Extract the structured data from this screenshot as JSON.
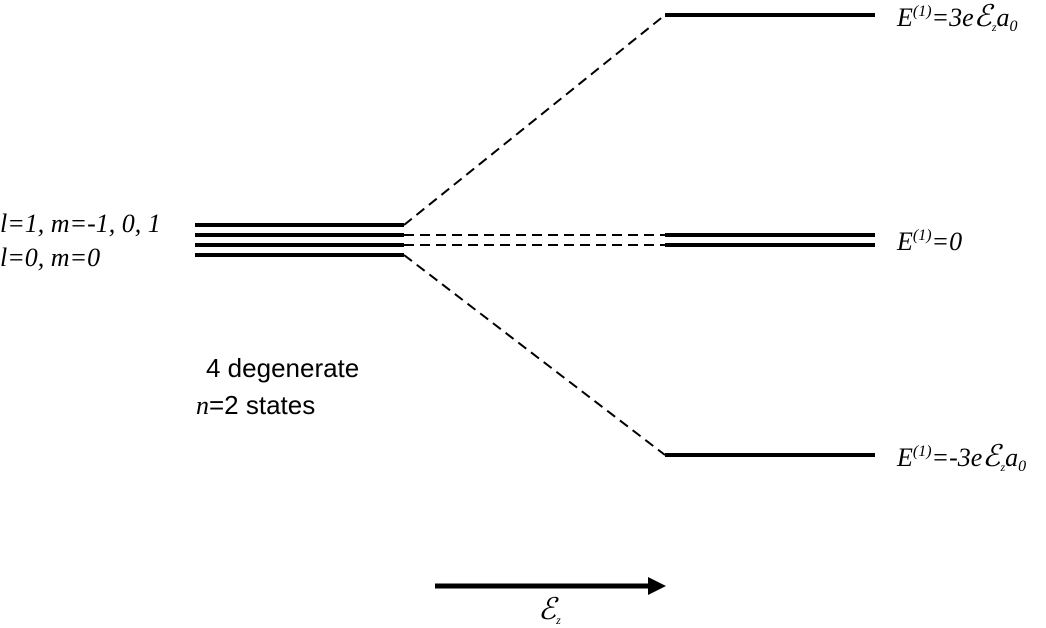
{
  "left_labels": {
    "l1": "l=1, m=-1, 0, 1",
    "l0": "l=0, m=0"
  },
  "caption": {
    "line1": "4 degenerate",
    "n_symbol": "n",
    "n_value": "=2 states"
  },
  "energy_labels": {
    "top": {
      "E": "E",
      "sup": "(1)",
      "rest": "=3e",
      "field": "ℰ",
      "field_sub": "z",
      "a": "a",
      "a_sub": "0"
    },
    "middle": {
      "E": "E",
      "sup": "(1)",
      "rest": "=0"
    },
    "bottom": {
      "E": "E",
      "sup": "(1)",
      "rest": "=-3e",
      "field": "ℰ",
      "field_sub": "z",
      "a": "a",
      "a_sub": "0"
    }
  },
  "field_axis": {
    "symbol": "ℰ",
    "subscript": "z"
  },
  "colors": {
    "line": "#000000",
    "background": "#ffffff"
  }
}
